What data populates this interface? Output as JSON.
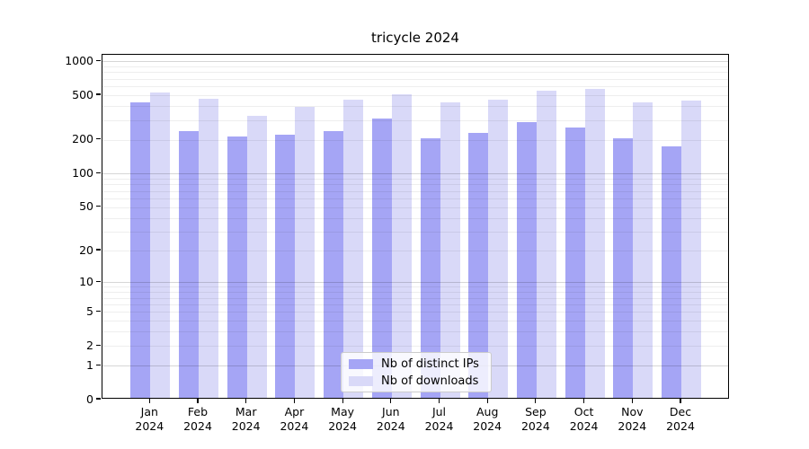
{
  "chart_data": {
    "type": "bar",
    "title": "tricycle 2024",
    "categories": [
      "Jan",
      "Feb",
      "Mar",
      "Apr",
      "May",
      "Jun",
      "Jul",
      "Aug",
      "Sep",
      "Oct",
      "Nov",
      "Dec"
    ],
    "x_year_label": "2024",
    "series": [
      {
        "name": "Nb of distinct IPs",
        "color": "#a5a5f5",
        "values": [
          415,
          232,
          206,
          215,
          233,
          297,
          199,
          222,
          279,
          250,
          201,
          170
        ]
      },
      {
        "name": "Nb of downloads",
        "color": "#d9d9f8",
        "values": [
          510,
          448,
          315,
          380,
          437,
          490,
          415,
          437,
          525,
          548,
          415,
          436
        ]
      }
    ],
    "yscale": "symlog",
    "yticks": [
      0,
      1,
      2,
      5,
      10,
      20,
      50,
      100,
      200,
      500,
      1000
    ],
    "ylim": [
      0,
      1150
    ],
    "xlabel": "",
    "ylabel": "",
    "grid": {
      "horizontal": true,
      "minor_lines": [
        2,
        3,
        4,
        5,
        6,
        7,
        8,
        9,
        20,
        30,
        40,
        50,
        60,
        70,
        80,
        90,
        200,
        300,
        400,
        500,
        600,
        700,
        800,
        900
      ],
      "major_lines": [
        1,
        10,
        100,
        1000
      ]
    },
    "legend_position": "lower center"
  },
  "legend": {
    "items": [
      {
        "label": "Nb of distinct IPs"
      },
      {
        "label": "Nb of downloads"
      }
    ]
  },
  "colors": {
    "ips_bar": "#a5a5f5",
    "downloads_bar": "#d9d9f8",
    "grid_minor": "rgba(0,0,0,0.065)",
    "grid_major": "rgba(0,0,0,0.16)",
    "spine": "#000000",
    "legend_border": "#cccccc"
  }
}
